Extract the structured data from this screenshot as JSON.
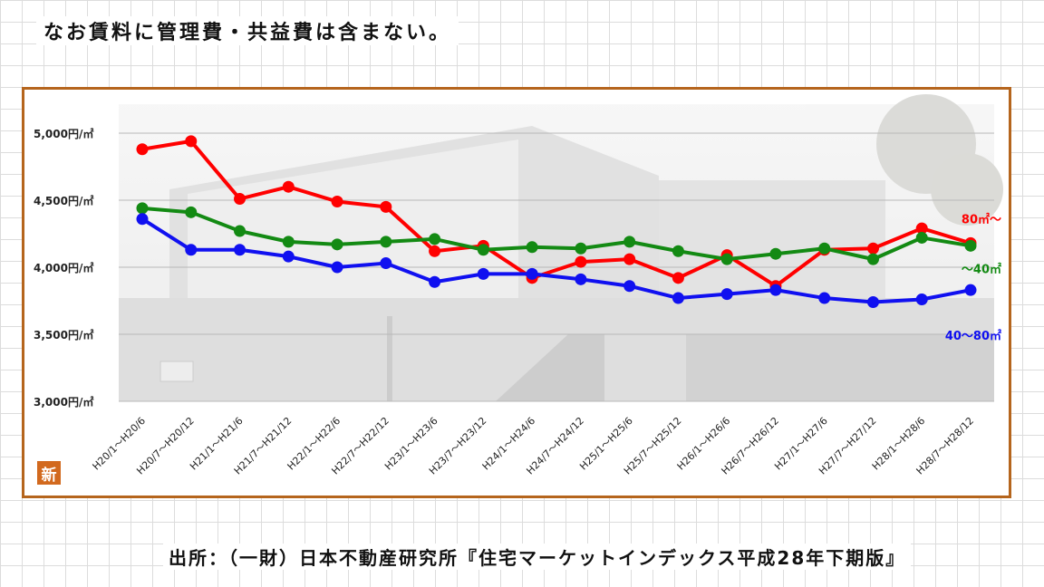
{
  "header": {
    "note": "なお賃料に管理費・共益費は含まない。"
  },
  "footer": {
    "source": "出所：（一財）日本不動産研究所『住宅マーケットインデックス平成28年下期版』"
  },
  "badge": {
    "label": "新"
  },
  "chart_data": {
    "type": "line",
    "title": "",
    "xlabel": "",
    "ylabel": "",
    "ylim": [
      3000,
      5000
    ],
    "yticks": [
      {
        "value": 3000,
        "label": "3,000円/㎡"
      },
      {
        "value": 3500,
        "label": "3,500円/㎡"
      },
      {
        "value": 4000,
        "label": "4,000円/㎡"
      },
      {
        "value": 4500,
        "label": "4,500円/㎡"
      },
      {
        "value": 5000,
        "label": "5,000円/㎡"
      }
    ],
    "categories": [
      "H20/1～H20/6",
      "H20/7～H20/12",
      "H21/1～H21/6",
      "H21/7～H21/12",
      "H22/1～H22/6",
      "H22/7～H22/12",
      "H23/1～H23/6",
      "H23/7～H23/12",
      "H24/1～H24/6",
      "H24/7～H24/12",
      "H25/1～H25/6",
      "H25/7～H25/12",
      "H26/1～H26/6",
      "H26/7～H26/12",
      "H27/1～H27/6",
      "H27/7～H27/12",
      "H28/1～H28/6",
      "H28/7～H28/12"
    ],
    "series": [
      {
        "name": "80㎡～",
        "color": "#ff0000",
        "values": [
          4880,
          4940,
          4510,
          4600,
          4490,
          4450,
          4120,
          4160,
          3920,
          4040,
          4060,
          3920,
          4090,
          3860,
          4130,
          4140,
          4290,
          4180
        ]
      },
      {
        "name": "～40㎡",
        "color": "#138a13",
        "values": [
          4440,
          4410,
          4270,
          4190,
          4170,
          4190,
          4210,
          4130,
          4150,
          4140,
          4190,
          4120,
          4060,
          4100,
          4140,
          4060,
          4220,
          4160
        ]
      },
      {
        "name": "40～80㎡",
        "color": "#1010f0",
        "values": [
          4360,
          4130,
          4130,
          4080,
          4000,
          4030,
          3890,
          3950,
          3950,
          3910,
          3860,
          3770,
          3800,
          3830,
          3770,
          3740,
          3760,
          3830
        ]
      }
    ],
    "grid": true,
    "legend": "inline-right"
  }
}
